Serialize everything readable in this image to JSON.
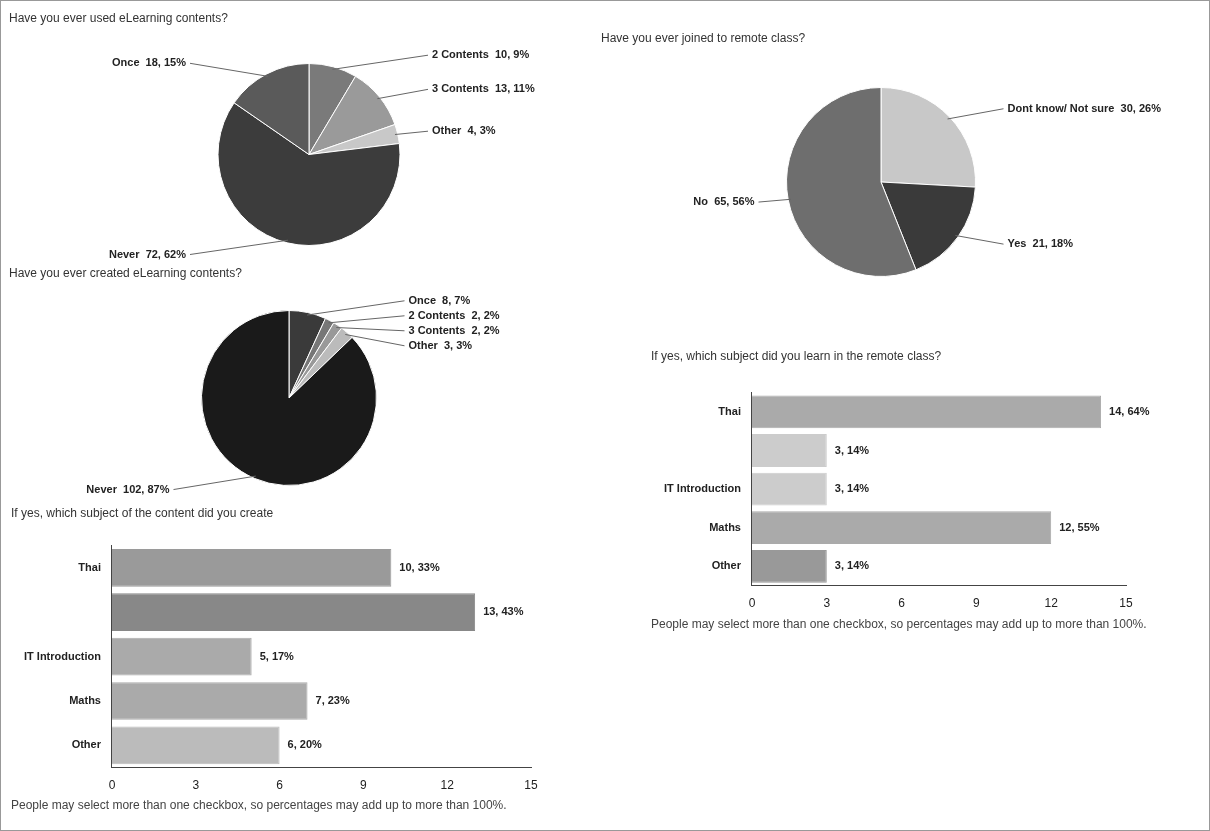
{
  "chart_data": [
    {
      "type": "pie",
      "title": "Have you ever used eLearning contents?",
      "categories": [
        "2 Contents",
        "3 Contents",
        "Other",
        "Never",
        "Once"
      ],
      "values": [
        10,
        13,
        4,
        72,
        18
      ],
      "colors": [
        "#7a7a7a",
        "#9a9a9a",
        "#c8c8c8",
        "#3c3c3c",
        "#5a5a5a"
      ],
      "value_labels": [
        "10, 9%",
        "13, 11%",
        "4, 3%",
        "72, 62%",
        "18, 15%"
      ]
    },
    {
      "type": "pie",
      "title": "Have you ever joined to remote class?",
      "categories": [
        "Dont know/ Not sure",
        "Yes",
        "No"
      ],
      "values": [
        30,
        21,
        65
      ],
      "colors": [
        "#c8c8c8",
        "#3a3a3a",
        "#6e6e6e"
      ],
      "value_labels": [
        "30, 26%",
        "21, 18%",
        "65, 56%"
      ]
    },
    {
      "type": "pie",
      "title": "Have you ever created eLearning contents?",
      "categories": [
        "Once",
        "2 Contents",
        "3 Contents",
        "Other",
        "Never"
      ],
      "values": [
        8,
        2,
        2,
        3,
        102
      ],
      "colors": [
        "#3a3a3a",
        "#777777",
        "#999999",
        "#bbbbbb",
        "#1a1a1a"
      ],
      "value_labels": [
        "8, 7%",
        "2, 2%",
        "2, 2%",
        "3, 3%",
        "102, 87%"
      ]
    },
    {
      "type": "bar",
      "orientation": "horizontal",
      "title": "If yes, which subject of the content did you create",
      "categories": [
        "Thai",
        null,
        "IT Introduction",
        "Maths",
        "Other"
      ],
      "values": [
        10,
        13,
        5,
        7,
        6
      ],
      "colors": [
        "#9a9a9a",
        "#888888",
        "#aaaaaa",
        "#aaaaaa",
        "#bbbbbb"
      ],
      "value_labels": [
        "10, 33%",
        "13, 43%",
        "5, 17%",
        "7, 23%",
        "6, 20%"
      ],
      "xlim": [
        0,
        15
      ],
      "xticks": [
        0,
        3,
        6,
        9,
        12,
        15
      ],
      "annotations": [
        "People may select more than one checkbox, so percentages may add up to more than 100%."
      ]
    },
    {
      "type": "bar",
      "orientation": "horizontal",
      "title": "If yes, which subject did you learn in the remote class?",
      "categories": [
        "Thai",
        null,
        "IT Introduction",
        "Maths",
        "Other"
      ],
      "values": [
        14,
        3,
        3,
        12,
        3
      ],
      "colors": [
        "#aaaaaa",
        "#cccccc",
        "#cccccc",
        "#aaaaaa",
        "#999999"
      ],
      "value_labels": [
        "14, 64%",
        "3, 14%",
        "3, 14%",
        "12, 55%",
        "3, 14%"
      ],
      "xlim": [
        0,
        15
      ],
      "xticks": [
        0,
        3,
        6,
        9,
        12,
        15
      ],
      "annotations": [
        "People may select more than one checkbox, so percentages may add up to more than 100%."
      ]
    }
  ]
}
